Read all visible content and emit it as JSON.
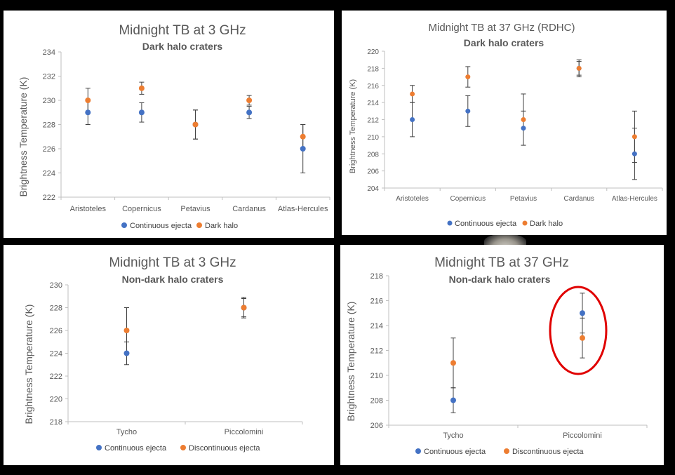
{
  "colors": {
    "continuous": "#4472c4",
    "dark_halo": "#ed7d31",
    "axis": "#bfbfbf",
    "errorbar": "#404040",
    "highlight": "#e00000"
  },
  "chart_data": [
    {
      "type": "scatter",
      "title": "Midnight TB at 3 GHz",
      "subtitle": "Dark halo craters",
      "ylabel": "Brightness Temperature (K)",
      "xlabel": "",
      "categories": [
        "Aristoteles",
        "Copernicus",
        "Petavius",
        "Cardanus",
        "Atlas-Hercules"
      ],
      "ylim": [
        222,
        234
      ],
      "yticks": [
        222,
        224,
        226,
        228,
        230,
        232,
        234
      ],
      "series": [
        {
          "name": "Continuous ejecta",
          "color": "#4472c4",
          "values": [
            229,
            229,
            228,
            229,
            226
          ],
          "err": [
            1.0,
            0.8,
            1.2,
            0.5,
            2.0
          ]
        },
        {
          "name": "Dark halo",
          "color": "#ed7d31",
          "values": [
            230,
            231,
            228,
            230,
            227
          ],
          "err": [
            1.0,
            0.5,
            1.2,
            0.4,
            1.0
          ]
        }
      ],
      "legend": "bottom"
    },
    {
      "type": "scatter",
      "title": "Midnight TB at 37 GHz (RDHC)",
      "subtitle": "Dark halo craters",
      "ylabel": "Brightness Temperature (K)",
      "xlabel": "",
      "categories": [
        "Aristoteles",
        "Copernicus",
        "Petavius",
        "Cardanus",
        "Atlas-Hercules"
      ],
      "ylim": [
        204,
        220
      ],
      "yticks": [
        204,
        206,
        208,
        210,
        212,
        214,
        216,
        218,
        220
      ],
      "series": [
        {
          "name": "Continuous ejecta",
          "color": "#4472c4",
          "values": [
            212,
            213,
            211,
            218,
            208
          ],
          "err": [
            2.0,
            1.8,
            2.0,
            0.8,
            3.0
          ]
        },
        {
          "name": "Dark halo",
          "color": "#ed7d31",
          "values": [
            215,
            217,
            212,
            218,
            210
          ],
          "err": [
            1.0,
            1.2,
            3.0,
            1.0,
            3.0
          ]
        }
      ],
      "legend": "bottom"
    },
    {
      "type": "scatter",
      "title": "Midnight TB at 3 GHz",
      "subtitle": "Non-dark halo craters",
      "ylabel": "Brightness Temperature (K)",
      "xlabel": "",
      "categories": [
        "Tycho",
        "Piccolomini"
      ],
      "ylim": [
        218,
        230
      ],
      "yticks": [
        218,
        220,
        222,
        224,
        226,
        228,
        230
      ],
      "series": [
        {
          "name": "Continuous ejecta",
          "color": "#4472c4",
          "values": [
            224,
            228
          ],
          "err": [
            1.0,
            0.9
          ]
        },
        {
          "name": "Discontinuous ejecta",
          "color": "#ed7d31",
          "values": [
            226,
            228
          ],
          "err": [
            2.0,
            0.8
          ]
        }
      ],
      "legend": "bottom"
    },
    {
      "type": "scatter",
      "title": "Midnight TB at 37 GHz",
      "subtitle": "Non-dark halo craters",
      "ylabel": "Brightness Temperature (K)",
      "xlabel": "",
      "categories": [
        "Tycho",
        "Piccolomini"
      ],
      "ylim": [
        206,
        218
      ],
      "yticks": [
        206,
        208,
        210,
        212,
        214,
        216,
        218
      ],
      "series": [
        {
          "name": "Continuous ejecta",
          "color": "#4472c4",
          "values": [
            208,
            215
          ],
          "err": [
            1.0,
            1.6
          ]
        },
        {
          "name": "Discontinuous ejecta",
          "color": "#ed7d31",
          "values": [
            211,
            213
          ],
          "err": [
            2.0,
            1.6
          ]
        }
      ],
      "legend": "bottom",
      "annotation": "red ellipse highlighting Piccolomini"
    }
  ]
}
